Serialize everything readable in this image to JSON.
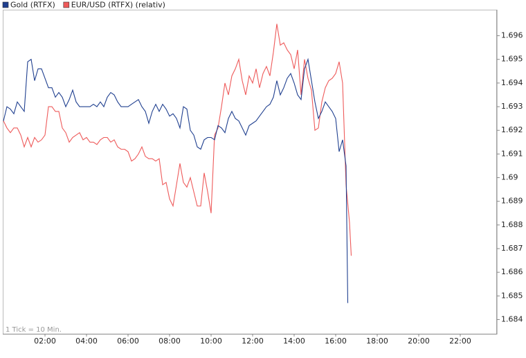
{
  "chart_data": {
    "type": "line",
    "annotation": "1 Tick = 10 Min.",
    "xlim": [
      0,
      1426
    ],
    "ylim": [
      1.6834,
      1.6971
    ],
    "xticks": [
      {
        "value": 120,
        "label": "02:00"
      },
      {
        "value": 240,
        "label": "04:00"
      },
      {
        "value": 360,
        "label": "06:00"
      },
      {
        "value": 480,
        "label": "08:00"
      },
      {
        "value": 600,
        "label": "10:00"
      },
      {
        "value": 720,
        "label": "12:00"
      },
      {
        "value": 840,
        "label": "14:00"
      },
      {
        "value": 960,
        "label": "16:00"
      },
      {
        "value": 1080,
        "label": "18:00"
      },
      {
        "value": 1200,
        "label": "20:00"
      },
      {
        "value": 1320,
        "label": "22:00"
      }
    ],
    "yticks": [
      1.684,
      1.685,
      1.686,
      1.687,
      1.688,
      1.689,
      1.69,
      1.691,
      1.692,
      1.693,
      1.694,
      1.695,
      1.696
    ],
    "grid": false,
    "series": [
      {
        "name": "Gold (RTFX)",
        "color": "#1f3f8f",
        "x": [
          0,
          10,
          20,
          30,
          40,
          50,
          60,
          70,
          80,
          90,
          100,
          110,
          120,
          130,
          140,
          150,
          160,
          170,
          180,
          190,
          200,
          210,
          220,
          230,
          240,
          250,
          260,
          270,
          280,
          290,
          300,
          310,
          320,
          330,
          340,
          350,
          360,
          370,
          380,
          390,
          400,
          410,
          420,
          430,
          440,
          450,
          460,
          470,
          480,
          490,
          500,
          510,
          520,
          530,
          540,
          550,
          560,
          570,
          580,
          590,
          600,
          610,
          620,
          630,
          640,
          650,
          660,
          670,
          680,
          690,
          700,
          710,
          720,
          730,
          740,
          750,
          760,
          770,
          780,
          790,
          800,
          810,
          820,
          830,
          840,
          850,
          860,
          870,
          880,
          890,
          900,
          910,
          920,
          930,
          940,
          950,
          960,
          970,
          980,
          990,
          995
        ],
        "values": [
          1.6924,
          1.693,
          1.6929,
          1.6927,
          1.6932,
          1.693,
          1.6928,
          1.6949,
          1.695,
          1.6941,
          1.6946,
          1.6946,
          1.6942,
          1.6938,
          1.6938,
          1.6934,
          1.6936,
          1.6934,
          1.693,
          1.6933,
          1.6937,
          1.6932,
          1.693,
          1.693,
          1.693,
          1.693,
          1.6931,
          1.693,
          1.6932,
          1.693,
          1.6934,
          1.6936,
          1.6935,
          1.6932,
          1.693,
          1.693,
          1.693,
          1.6931,
          1.6932,
          1.6933,
          1.693,
          1.6928,
          1.6923,
          1.6928,
          1.6931,
          1.6928,
          1.6931,
          1.6929,
          1.6926,
          1.6927,
          1.6925,
          1.6921,
          1.693,
          1.6929,
          1.692,
          1.6918,
          1.6913,
          1.6912,
          1.6916,
          1.6917,
          1.6917,
          1.6916,
          1.6922,
          1.6921,
          1.6919,
          1.6925,
          1.6928,
          1.6925,
          1.6924,
          1.6921,
          1.6918,
          1.6922,
          1.6923,
          1.6924,
          1.6926,
          1.6928,
          1.693,
          1.6931,
          1.6934,
          1.6941,
          1.6935,
          1.6938,
          1.6942,
          1.6944,
          1.694,
          1.6935,
          1.6933,
          1.6946,
          1.695,
          1.6941,
          1.6932,
          1.6925,
          1.6928,
          1.6932,
          1.693,
          1.6928,
          1.6925,
          1.6911,
          1.6916,
          1.6905,
          1.6847
        ]
      },
      {
        "name": "EUR/USD (RTFX) (relativ)",
        "color": "#ee5a5a",
        "x": [
          0,
          10,
          20,
          30,
          40,
          50,
          60,
          70,
          80,
          90,
          100,
          110,
          120,
          130,
          140,
          150,
          160,
          170,
          180,
          190,
          200,
          210,
          220,
          230,
          240,
          250,
          260,
          270,
          280,
          290,
          300,
          310,
          320,
          330,
          340,
          350,
          360,
          370,
          380,
          390,
          400,
          410,
          420,
          430,
          440,
          450,
          460,
          470,
          480,
          490,
          500,
          510,
          520,
          530,
          540,
          550,
          560,
          570,
          580,
          590,
          600,
          610,
          620,
          630,
          640,
          650,
          660,
          670,
          680,
          690,
          700,
          710,
          720,
          730,
          740,
          750,
          760,
          770,
          780,
          790,
          800,
          810,
          820,
          830,
          840,
          850,
          860,
          870,
          880,
          890,
          900,
          910,
          920,
          930,
          940,
          950,
          960,
          970,
          980,
          990,
          1000,
          1005
        ],
        "values": [
          1.6924,
          1.6921,
          1.6919,
          1.6921,
          1.6921,
          1.6918,
          1.6913,
          1.6917,
          1.6913,
          1.6917,
          1.6915,
          1.6916,
          1.6918,
          1.693,
          1.693,
          1.6928,
          1.6928,
          1.6921,
          1.6919,
          1.6915,
          1.6917,
          1.6918,
          1.6919,
          1.6916,
          1.6917,
          1.6915,
          1.6915,
          1.6914,
          1.6916,
          1.6917,
          1.6917,
          1.6915,
          1.6916,
          1.6913,
          1.6912,
          1.6912,
          1.6911,
          1.6907,
          1.6908,
          1.691,
          1.6913,
          1.6909,
          1.6908,
          1.6908,
          1.6907,
          1.6908,
          1.6897,
          1.6898,
          1.6891,
          1.6888,
          1.6897,
          1.6906,
          1.6898,
          1.6896,
          1.69,
          1.6894,
          1.6888,
          1.6888,
          1.6902,
          1.6894,
          1.6885,
          1.6918,
          1.6921,
          1.693,
          1.694,
          1.6935,
          1.6943,
          1.6946,
          1.695,
          1.6941,
          1.6935,
          1.6943,
          1.694,
          1.6946,
          1.6938,
          1.6944,
          1.6947,
          1.6943,
          1.6953,
          1.6965,
          1.6956,
          1.6957,
          1.6954,
          1.6952,
          1.6946,
          1.6954,
          1.6935,
          1.695,
          1.6942,
          1.6937,
          1.692,
          1.6921,
          1.6932,
          1.6938,
          1.6941,
          1.6942,
          1.6944,
          1.6949,
          1.694,
          1.6897,
          1.6881,
          1.6867
        ]
      }
    ]
  }
}
